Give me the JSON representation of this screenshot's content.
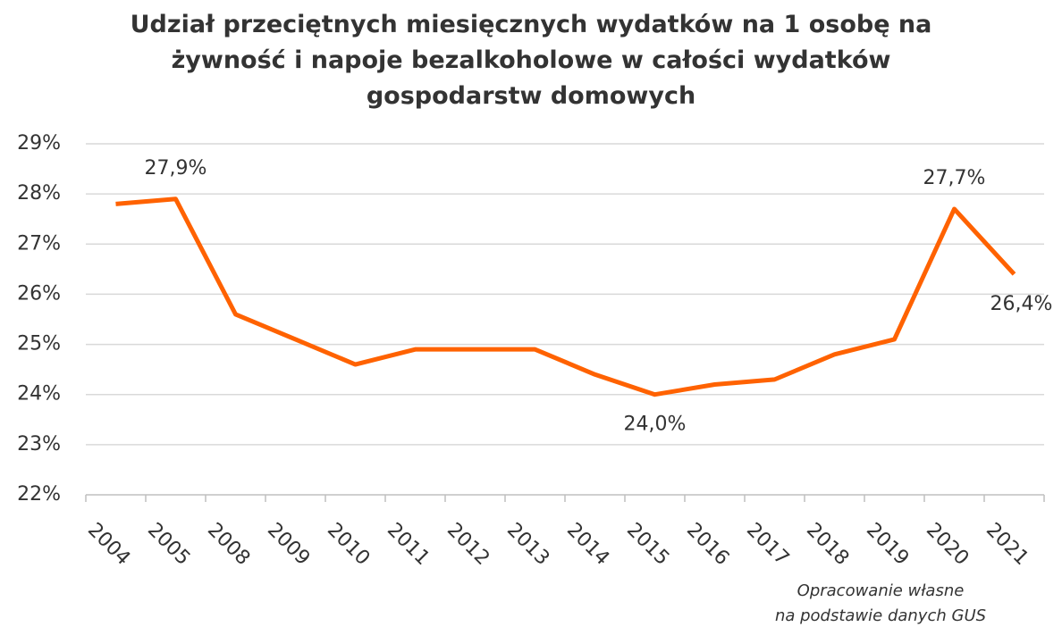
{
  "chart_data": {
    "type": "line",
    "title": "Udział przeciętnych miesięcznych wydatków na 1 osobę na żywność i napoje bezalkoholowe w całości wydatków gospodarstw domowych",
    "categories": [
      "2004",
      "2005",
      "2008",
      "2009",
      "2010",
      "2011",
      "2012",
      "2013",
      "2014",
      "2015",
      "2016",
      "2017",
      "2018",
      "2019",
      "2020",
      "2021"
    ],
    "values": [
      27.8,
      27.9,
      25.6,
      25.1,
      24.6,
      24.9,
      24.9,
      24.9,
      24.4,
      24.0,
      24.2,
      24.3,
      24.8,
      25.1,
      27.7,
      26.4
    ],
    "value_labels": [
      null,
      "27,9%",
      null,
      null,
      null,
      null,
      null,
      null,
      null,
      "24,0%",
      null,
      null,
      null,
      null,
      "27,7%",
      "26,4%"
    ],
    "color": "#ff6200",
    "ylim": [
      22,
      29
    ],
    "yticks": [
      {
        "value": 22,
        "label": "22%"
      },
      {
        "value": 23,
        "label": "23%"
      },
      {
        "value": 24,
        "label": "24%"
      },
      {
        "value": 25,
        "label": "25%"
      },
      {
        "value": 26,
        "label": "26%"
      },
      {
        "value": 27,
        "label": "27%"
      },
      {
        "value": 28,
        "label": "28%"
      },
      {
        "value": 29,
        "label": "29%"
      }
    ],
    "grid": true,
    "note": [
      "Opracowanie własne",
      "na podstawie danych GUS"
    ]
  }
}
